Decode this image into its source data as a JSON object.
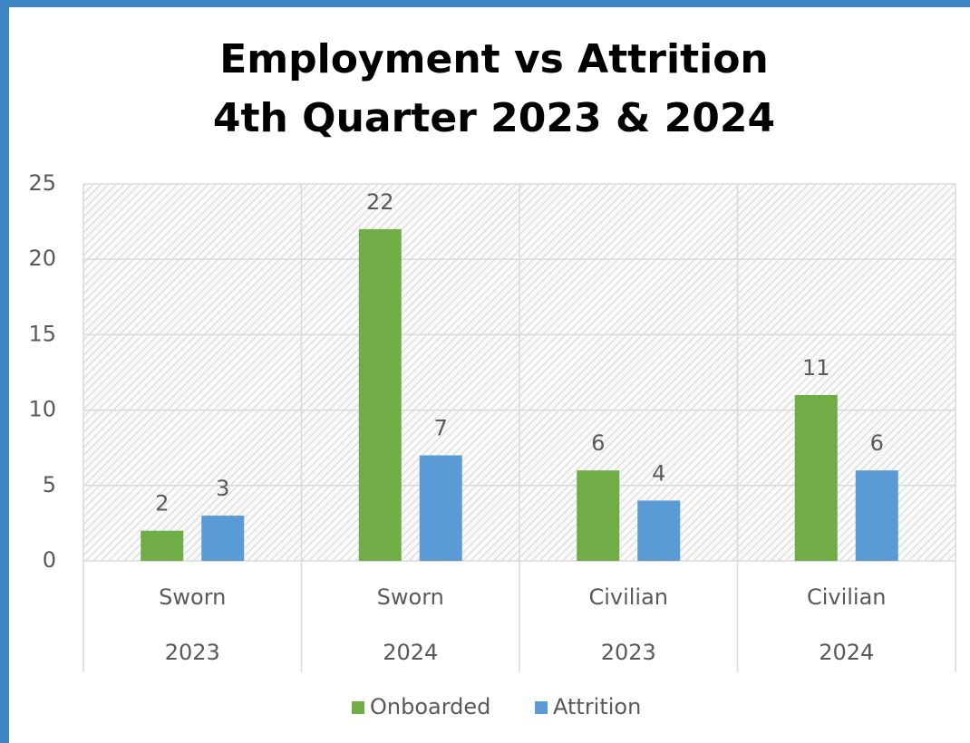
{
  "chart_data": {
    "type": "bar",
    "title": [
      "Employment vs Attrition",
      "4th Quarter 2023 & 2024"
    ],
    "categories": [
      [
        "Sworn",
        "2023"
      ],
      [
        "Sworn",
        "2024"
      ],
      [
        "Civilian",
        "2023"
      ],
      [
        "Civilian",
        "2024"
      ]
    ],
    "series": [
      {
        "name": "Onboarded",
        "color": "#70ad47",
        "values": [
          2,
          22,
          6,
          11
        ]
      },
      {
        "name": "Attrition",
        "color": "#5b9bd5",
        "values": [
          3,
          7,
          4,
          6
        ]
      }
    ],
    "ylim": [
      0,
      25
    ],
    "yticks": [
      0,
      5,
      10,
      15,
      20,
      25
    ],
    "grid": true,
    "legend": "bottom"
  }
}
